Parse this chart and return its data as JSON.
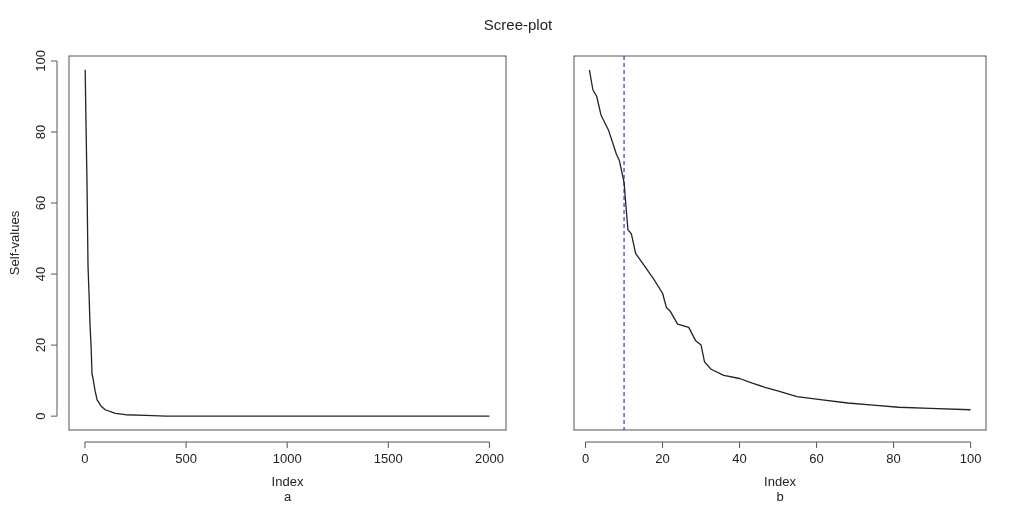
{
  "chart_data": [
    {
      "type": "line",
      "title": "Scree-plot",
      "xlabel": "Index",
      "ylabel": "Self-values",
      "annotations": [
        "a"
      ],
      "xlim": [
        -79,
        2082
      ],
      "xticks": [
        0,
        500,
        1000,
        1500,
        2000
      ],
      "ylim": [
        -3.9,
        101.4
      ],
      "yticks": [
        0,
        20,
        40,
        60,
        80,
        100
      ],
      "series": [
        {
          "color": "#222222",
          "x": [
            1,
            5,
            10,
            15,
            20,
            25,
            30,
            35,
            40,
            50,
            60,
            80,
            100,
            150,
            200,
            300,
            400,
            600,
            1000,
            2000
          ],
          "values": [
            97.5,
            82.6,
            65.8,
            42.3,
            34.6,
            25.5,
            20,
            11.8,
            10.6,
            7.1,
            4.6,
            2.8,
            1.8,
            0.8,
            0.4,
            0.2,
            0,
            0,
            0,
            0
          ]
        }
      ]
    },
    {
      "type": "line",
      "xlabel": "Index",
      "annotations": [
        "b"
      ],
      "tick_labels": "x",
      "xlim": [
        -3,
        104
      ],
      "xticks": [
        0,
        20,
        40,
        60,
        80,
        100
      ],
      "ylim": [
        -3.9,
        101.4
      ],
      "ref_lines": [
        {
          "axis": "x",
          "value": 10,
          "color": "#3333cc",
          "line_style": "dashed"
        }
      ],
      "series": [
        {
          "color": "#222222",
          "x": [
            1,
            1.9,
            2.9,
            4,
            6,
            8,
            8.8,
            10,
            11,
            11.9,
            13,
            15.3,
            17.7,
            20,
            21,
            21.9,
            23.9,
            26.8,
            28.6,
            30,
            30.9,
            32.6,
            35.9,
            40,
            43.3,
            46.6,
            49.9,
            54.9,
            61.5,
            68.1,
            74.7,
            81.3,
            89.5,
            100
          ],
          "values": [
            97.5,
            91.9,
            90,
            84.8,
            80.4,
            73.8,
            71.9,
            65.8,
            52.5,
            51.3,
            45.8,
            42.3,
            38.6,
            34.6,
            30.6,
            29.7,
            25.9,
            25,
            21.2,
            20,
            15.3,
            13.2,
            11.5,
            10.6,
            9.3,
            8.1,
            7.1,
            5.5,
            4.6,
            3.7,
            3.1,
            2.5,
            2.2,
            1.8
          ]
        }
      ]
    }
  ]
}
